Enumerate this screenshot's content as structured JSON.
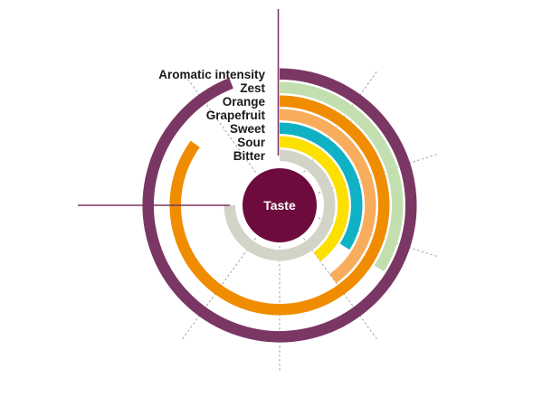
{
  "chart_data": {
    "type": "radial-bar",
    "center_label": "Taste",
    "max_value": 10,
    "series": [
      {
        "name": "Aromatic intensity",
        "value": 9.4,
        "color": "#7b3764"
      },
      {
        "name": "Zest",
        "value": 3.4,
        "color": "#c3dfb0"
      },
      {
        "name": "Orange",
        "value": 8.5,
        "color": "#f08c00"
      },
      {
        "name": "Grapefruit",
        "value": 4.0,
        "color": "#f7ad5c"
      },
      {
        "name": "Sweet",
        "value": 3.4,
        "color": "#10b1c4"
      },
      {
        "name": "Sour",
        "value": 4.0,
        "color": "#fce000"
      },
      {
        "name": "Bitter",
        "value": 7.5,
        "color": "#d3d4c8"
      }
    ],
    "center_color": "#6d0c3c",
    "accent_line_color": "#7b3764",
    "grid_line_color": "#8c8c8c"
  }
}
